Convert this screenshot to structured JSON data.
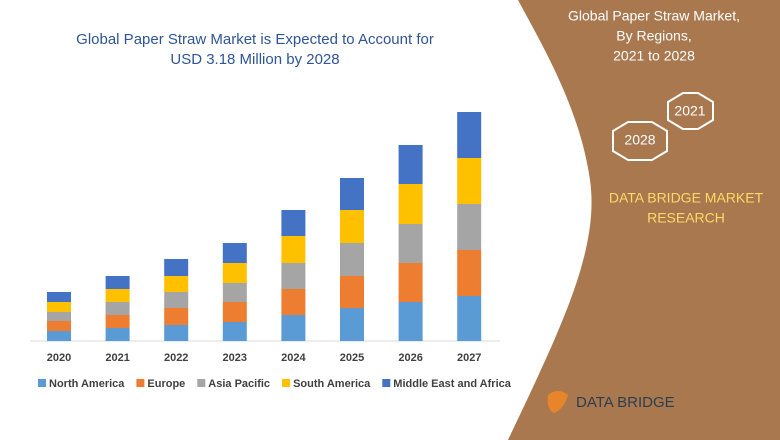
{
  "chart_data": {
    "type": "bar",
    "stacked": true,
    "title": [
      "Global Paper Straw Market is Expected to Account for",
      "USD 3.18 Million by 2028"
    ],
    "categories": [
      "2020",
      "2021",
      "2022",
      "2023",
      "2024",
      "2025",
      "2026",
      "2027"
    ],
    "series": [
      {
        "name": "North America",
        "color": "#5b9bd5",
        "values": [
          10,
          13,
          16,
          19,
          26,
          33,
          39,
          45
        ]
      },
      {
        "name": "Europe",
        "color": "#ed7d31",
        "values": [
          10,
          13,
          17,
          20,
          26,
          32,
          39,
          46
        ]
      },
      {
        "name": "Asia Pacific",
        "color": "#a5a5a5",
        "values": [
          9,
          13,
          16,
          19,
          26,
          33,
          39,
          46
        ]
      },
      {
        "name": "South America",
        "color": "#ffc000",
        "values": [
          10,
          13,
          16,
          20,
          27,
          33,
          40,
          46
        ]
      },
      {
        "name": "Middle East and Africa",
        "color": "#4472c4",
        "values": [
          10,
          13,
          17,
          20,
          26,
          32,
          39,
          46
        ]
      }
    ],
    "ylim": [
      0,
      230
    ],
    "grid": false
  },
  "panel": {
    "heading": [
      "Global Paper Straw Market,",
      "By Regions,",
      "2021 to 2028"
    ],
    "hexagons": [
      "2021",
      "2028"
    ],
    "company": [
      "DATA BRIDGE MARKET",
      "RESEARCH"
    ],
    "logo": "DATA BRIDGE"
  }
}
